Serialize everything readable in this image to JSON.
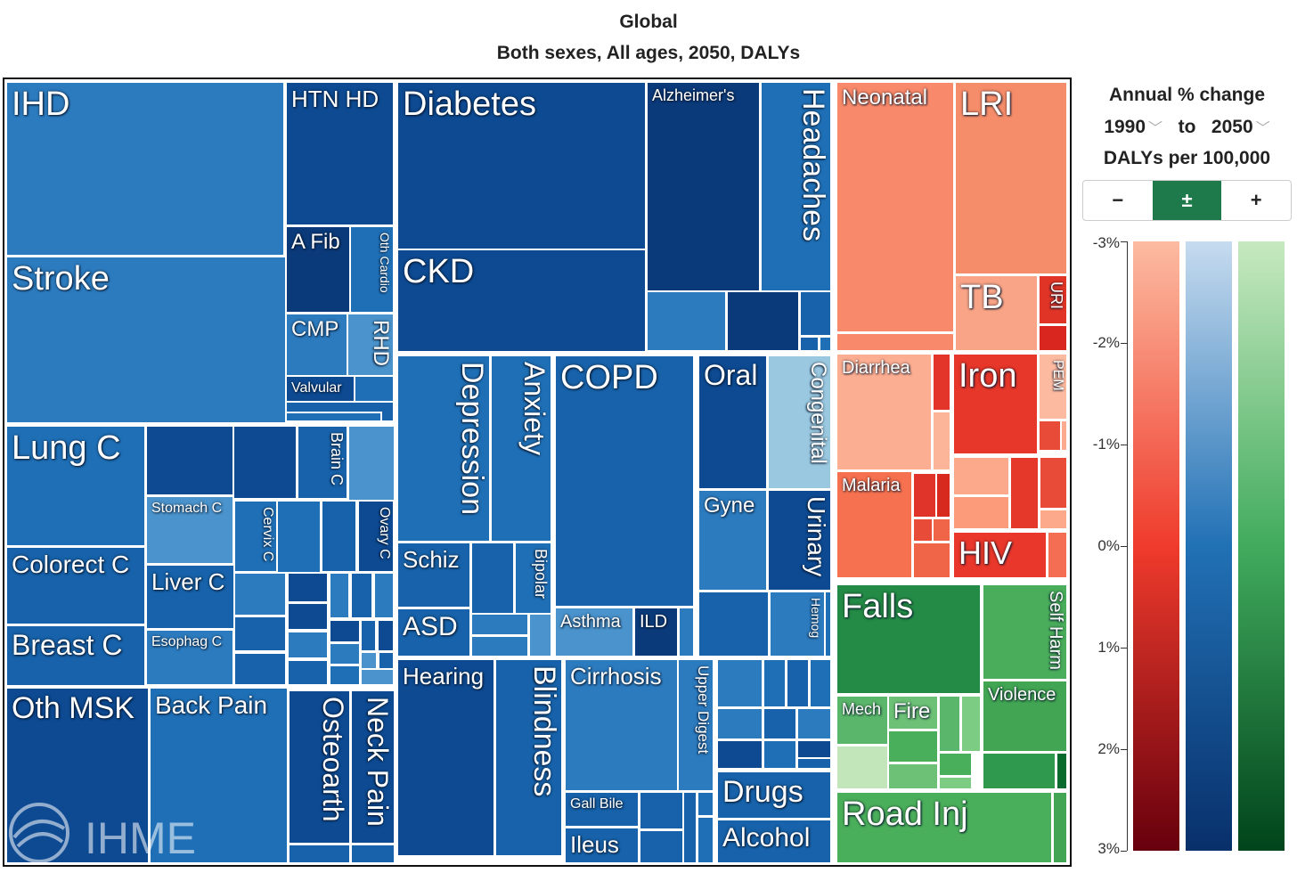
{
  "header": {
    "title": "Global",
    "subtitle": "Both sexes, All ages, 2050, DALYs"
  },
  "legend": {
    "title": "Annual % change",
    "from_year": "1990",
    "to_label": "to",
    "to_year": "2050",
    "metric": "DALYs per 100,000",
    "buttons": [
      {
        "label": "−",
        "active": false
      },
      {
        "label": "±",
        "active": true
      },
      {
        "label": "+",
        "active": false
      }
    ],
    "ticks": [
      "-3%",
      "-2%",
      "-1%",
      "0%",
      "1%",
      "2%",
      "3%"
    ],
    "scales": [
      {
        "name": "communicable",
        "top": "#fcbba1",
        "mid": "#ef3b2c",
        "bottom": "#67000d"
      },
      {
        "name": "non-communicable",
        "top": "#c6dbef",
        "mid": "#2171b5",
        "bottom": "#08306b"
      },
      {
        "name": "injuries",
        "top": "#c7e9c0",
        "mid": "#41ab5d",
        "bottom": "#00441b"
      }
    ]
  },
  "logo": {
    "text": "IHME"
  },
  "chart_data": {
    "type": "treemap",
    "title": "Global",
    "subtitle": "Both sexes, All ages, 2050, DALYs",
    "color_scale": "Annual % change 1990 to 2050, DALYs per 100,000",
    "color_range": [
      -3,
      3
    ],
    "labels": {
      "ihd": "IHD",
      "stroke": "Stroke",
      "htnhd": "HTN HD",
      "afib": "A Fib",
      "othcardio": "Oth Cardio",
      "cmp": "CMP",
      "rhd": "RHD",
      "valvular": "Valvular",
      "lungc": "Lung C",
      "colorectc": "Colorect C",
      "breastc": "Breast C",
      "brainc": "Brain C",
      "stomachc": "Stomach C",
      "cervixc": "Cervix C",
      "ovaryc": "Ovary C",
      "liverc": "Liver C",
      "esophagc": "Esophag C",
      "othmsk": "Oth MSK",
      "backpain": "Back Pain",
      "osteoarth": "Osteoarth",
      "neckpain": "Neck Pain",
      "diabetes": "Diabetes",
      "ckd": "CKD",
      "alzheimers": "Alzheimer's",
      "headaches": "Headaches",
      "depression": "Depression",
      "anxiety": "Anxiety",
      "schiz": "Schiz",
      "bipolar": "Bipolar",
      "asd": "ASD",
      "copd": "COPD",
      "asthma": "Asthma",
      "ild": "ILD",
      "oral": "Oral",
      "congenital": "Congenital",
      "gyne": "Gyne",
      "urinary": "Urinary",
      "hemog": "Hemog",
      "hearing": "Hearing",
      "blindness": "Blindness",
      "cirrhosis": "Cirrhosis",
      "upperdigest": "Upper Digest",
      "gallbile": "Gall Bile",
      "ileus": "Ileus",
      "drugs": "Drugs",
      "alcohol": "Alcohol",
      "neonatal": "Neonatal",
      "lri": "LRI",
      "tb": "TB",
      "uri": "URI",
      "diarrhea": "Diarrhea",
      "malaria": "Malaria",
      "iron": "Iron",
      "pem": "PEM",
      "hiv": "HIV",
      "falls": "Falls",
      "selfharm": "Self Harm",
      "violence": "Violence",
      "mech": "Mech",
      "fire": "Fire",
      "roadinj": "Road Inj"
    }
  }
}
